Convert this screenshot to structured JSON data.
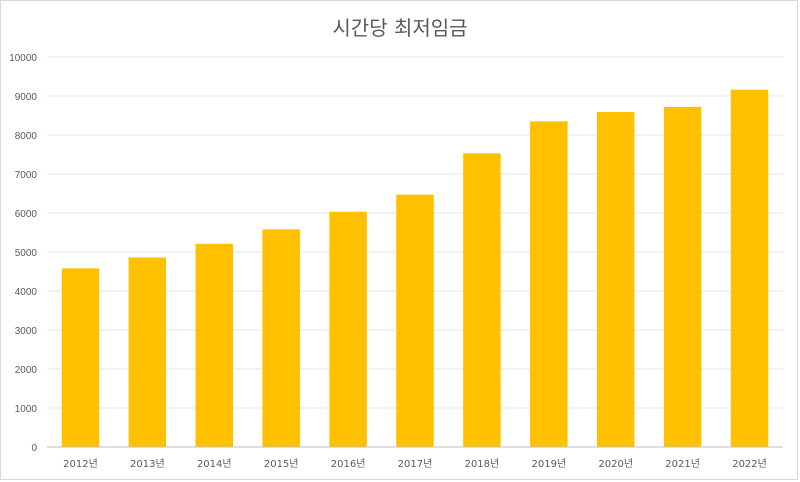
{
  "chart_data": {
    "type": "bar",
    "title": "시간당 최저임금",
    "xlabel": "",
    "ylabel": "",
    "categories": [
      "2012년",
      "2013년",
      "2014년",
      "2015년",
      "2016년",
      "2017년",
      "2018년",
      "2019년",
      "2020년",
      "2021년",
      "2022년"
    ],
    "values": [
      4580,
      4860,
      5210,
      5580,
      6030,
      6470,
      7530,
      8350,
      8590,
      8720,
      9160
    ],
    "ylim": [
      0,
      10000
    ],
    "yticks": [
      "0",
      "1000",
      "2000",
      "3000",
      "4000",
      "5000",
      "6000",
      "7000",
      "8000",
      "9000",
      "10000"
    ],
    "grid": true,
    "legend": "none",
    "colors": {
      "bar": "#FFC000",
      "grid": "#e6e6e6",
      "axis": "#bfbfbf",
      "text": "#595959"
    }
  }
}
